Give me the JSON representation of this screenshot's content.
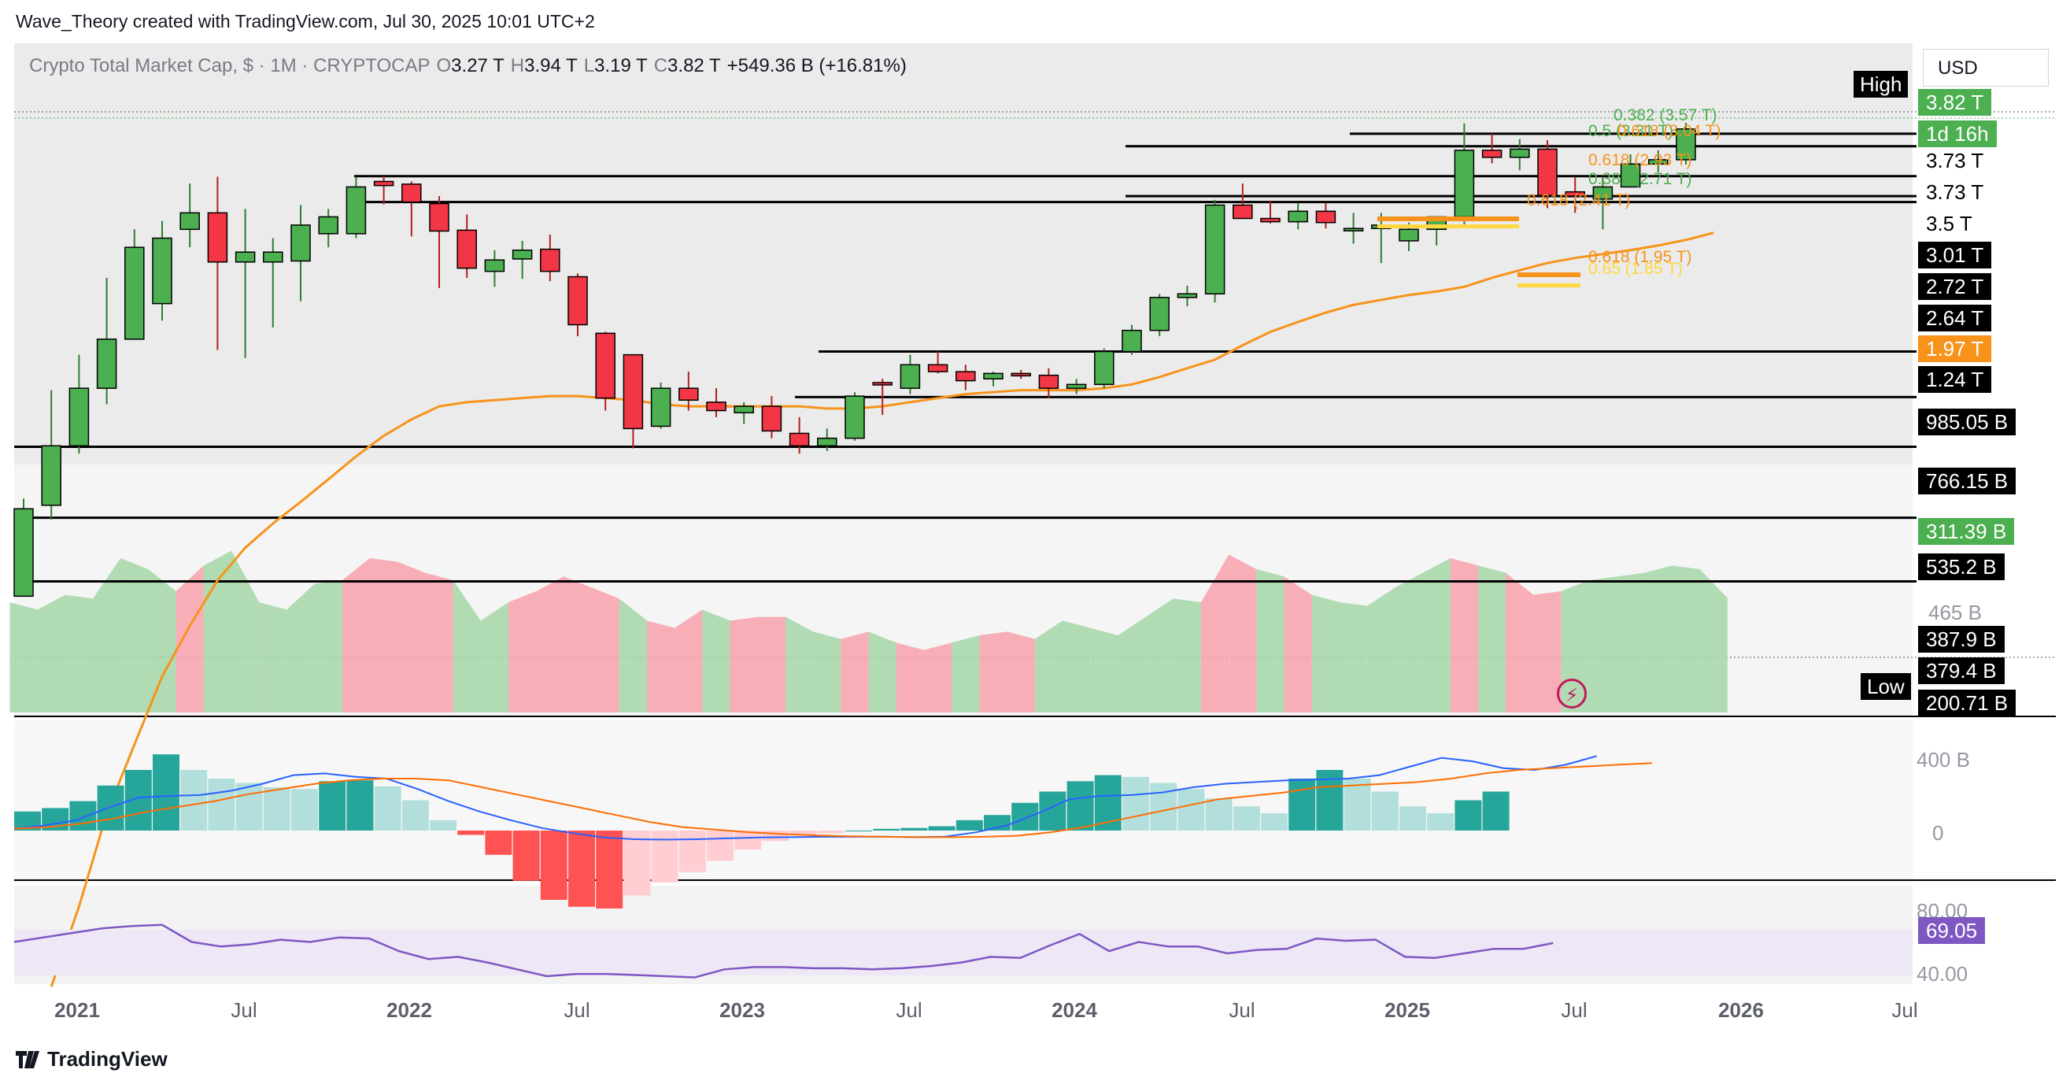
{
  "header": {
    "attribution": "Wave_Theory created with TradingView.com, Jul 30, 2025 10:01 UTC+2"
  },
  "legend": {
    "symbol": "Crypto Total Market Cap, $ · 1M · CRYPTOCAP",
    "o_label": "O",
    "o": "3.27 T",
    "h_label": "H",
    "h": "3.94 T",
    "l_label": "L",
    "l": "3.19 T",
    "c_label": "C",
    "c": "3.82 T",
    "change": "+549.36 B (+16.81%)"
  },
  "currency": "USD",
  "brand": "TradingView",
  "colors": {
    "up": "#4caf50",
    "down": "#f23645",
    "ema": "#f7931a",
    "macd": "#2962ff",
    "signal": "#ff6d00",
    "rsi": "#7e57c2"
  },
  "price_tags": [
    {
      "label": "3.82 T",
      "bg": "#4caf50",
      "fg": "#ffffff"
    },
    {
      "label": "1d 16h",
      "bg": "#4caf50",
      "fg": "#ffffff"
    },
    {
      "label": "3.73 T",
      "bg": "#ffffff",
      "fg": "#000000"
    },
    {
      "label": "3.73 T",
      "bg": "#ffffff",
      "fg": "#000000"
    },
    {
      "label": "3.5 T",
      "bg": "#ffffff",
      "fg": "#000000"
    },
    {
      "label": "3.01 T",
      "bg": "#000000",
      "fg": "#ffffff"
    },
    {
      "label": "2.72 T",
      "bg": "#000000",
      "fg": "#ffffff"
    },
    {
      "label": "2.64 T",
      "bg": "#000000",
      "fg": "#ffffff"
    },
    {
      "label": "1.97 T",
      "bg": "#f7931a",
      "fg": "#ffffff"
    },
    {
      "label": "1.24 T",
      "bg": "#000000",
      "fg": "#ffffff"
    },
    {
      "label": "985.05 B",
      "bg": "#000000",
      "fg": "#ffffff"
    },
    {
      "label": "766.15 B",
      "bg": "#000000",
      "fg": "#ffffff"
    },
    {
      "label": "311.39 B",
      "bg": "#4caf50",
      "fg": "#ffffff"
    },
    {
      "label": "535.2 B",
      "bg": "#000000",
      "fg": "#ffffff"
    },
    {
      "label": "387.9 B",
      "bg": "#000000",
      "fg": "#ffffff"
    },
    {
      "label": "379.4 B",
      "bg": "#000000",
      "fg": "#ffffff"
    },
    {
      "label": "200.71 B",
      "bg": "#000000",
      "fg": "#ffffff"
    }
  ],
  "scale_labels": {
    "vol_465": "465 B",
    "macd_400": "400 B",
    "macd_0": "0",
    "rsi_80": "80.00",
    "rsi_40": "40.00",
    "rsi_value": "69.05"
  },
  "flags": {
    "high": "High",
    "low": "Low"
  },
  "fib_labels": [
    {
      "text": "0.382 (3.57 T)",
      "color": "#4caf50"
    },
    {
      "text": "0.5 (3.31 T)",
      "color": "#4caf50"
    },
    {
      "text": "0.618 (3.04 T)",
      "color": "#f7931a"
    },
    {
      "text": "0.618 (2.93 T)",
      "color": "#f7931a"
    },
    {
      "text": "0.382 (2.71 T)",
      "color": "#4caf50"
    },
    {
      "text": "0.618 (2.41 T)",
      "color": "#f7931a"
    },
    {
      "text": "0.618 (1.95 T)",
      "color": "#f7931a"
    },
    {
      "text": "0.65 (1.85 T)",
      "color": "#ffd740"
    }
  ],
  "chart_data": {
    "type": "candlestick",
    "title": "Crypto Total Market Cap, $ · 1M · CRYPTOCAP",
    "x_axis_labels": [
      "2021",
      "Jul",
      "2022",
      "Jul",
      "2023",
      "Jul",
      "2024",
      "Jul",
      "2025",
      "Jul",
      "2026",
      "Jul"
    ],
    "y_scale": "log",
    "y_range_T": [
      0.2,
      4.2
    ],
    "candles_T": [
      {
        "m": "2020-12",
        "o": 0.36,
        "h": 0.59,
        "l": 0.36,
        "c": 0.56
      },
      {
        "m": "2021-01",
        "o": 0.57,
        "h": 1.02,
        "l": 0.53,
        "c": 0.77
      },
      {
        "m": "2021-02",
        "o": 0.77,
        "h": 1.22,
        "l": 0.74,
        "c": 1.03
      },
      {
        "m": "2021-03",
        "o": 1.03,
        "h": 1.8,
        "l": 0.95,
        "c": 1.32
      },
      {
        "m": "2021-04",
        "o": 1.32,
        "h": 2.3,
        "l": 1.43,
        "c": 2.1
      },
      {
        "m": "2021-05",
        "o": 1.58,
        "h": 2.4,
        "l": 1.45,
        "c": 2.2
      },
      {
        "m": "2021-06",
        "o": 2.3,
        "h": 2.9,
        "l": 2.1,
        "c": 2.5
      },
      {
        "m": "2021-07",
        "o": 2.5,
        "h": 3.0,
        "l": 1.25,
        "c": 1.95
      },
      {
        "m": "2021-08",
        "o": 1.95,
        "h": 2.55,
        "l": 1.2,
        "c": 2.05
      },
      {
        "m": "2021-09",
        "o": 1.95,
        "h": 2.2,
        "l": 1.4,
        "c": 2.05
      },
      {
        "m": "2021-10",
        "o": 1.96,
        "h": 2.6,
        "l": 1.6,
        "c": 2.35
      },
      {
        "m": "2021-11",
        "o": 2.25,
        "h": 2.55,
        "l": 2.1,
        "c": 2.45
      },
      {
        "m": "2021-12",
        "o": 2.25,
        "h": 3.0,
        "l": 2.2,
        "c": 2.85
      },
      {
        "m": "2022-01",
        "o": 2.93,
        "h": 3.01,
        "l": 2.61,
        "c": 2.87
      },
      {
        "m": "2022-02",
        "o": 2.89,
        "h": 2.93,
        "l": 2.22,
        "c": 2.64
      },
      {
        "m": "2022-03",
        "o": 2.62,
        "h": 2.72,
        "l": 1.71,
        "c": 2.28
      },
      {
        "m": "2022-04",
        "o": 2.29,
        "h": 2.48,
        "l": 1.8,
        "c": 1.89
      },
      {
        "m": "2022-05",
        "o": 1.86,
        "h": 2.07,
        "l": 1.72,
        "c": 1.97
      },
      {
        "m": "2022-06",
        "o": 1.98,
        "h": 2.17,
        "l": 1.79,
        "c": 2.07
      },
      {
        "m": "2022-07",
        "o": 2.08,
        "h": 2.24,
        "l": 1.77,
        "c": 1.86
      },
      {
        "m": "2022-08",
        "o": 1.81,
        "h": 1.84,
        "l": 1.34,
        "c": 1.42
      },
      {
        "m": "2022-09",
        "o": 1.36,
        "h": 1.37,
        "l": 0.92,
        "c": 0.98
      },
      {
        "m": "2022-10",
        "o": 1.22,
        "h": 1.22,
        "l": 0.76,
        "c": 0.84
      },
      {
        "m": "2022-11",
        "o": 0.85,
        "h": 1.06,
        "l": 0.84,
        "c": 1.03
      },
      {
        "m": "2022-12",
        "o": 1.03,
        "h": 1.12,
        "l": 0.92,
        "c": 0.97
      },
      {
        "m": "2023-01",
        "o": 0.96,
        "h": 1.03,
        "l": 0.89,
        "c": 0.92
      },
      {
        "m": "2023-02",
        "o": 0.91,
        "h": 0.96,
        "l": 0.86,
        "c": 0.94
      },
      {
        "m": "2023-03",
        "o": 0.94,
        "h": 0.99,
        "l": 0.8,
        "c": 0.83
      },
      {
        "m": "2023-04",
        "o": 0.82,
        "h": 0.89,
        "l": 0.74,
        "c": 0.77
      },
      {
        "m": "2023-05",
        "o": 0.77,
        "h": 0.84,
        "l": 0.75,
        "c": 0.8
      },
      {
        "m": "2023-06",
        "o": 0.8,
        "h": 1.01,
        "l": 0.79,
        "c": 0.99
      },
      {
        "m": "2023-07",
        "o": 1.06,
        "h": 1.08,
        "l": 0.9,
        "c": 1.05
      },
      {
        "m": "2023-08",
        "o": 1.03,
        "h": 1.22,
        "l": 1.0,
        "c": 1.16
      },
      {
        "m": "2023-09",
        "o": 1.16,
        "h": 1.24,
        "l": 1.11,
        "c": 1.12
      },
      {
        "m": "2023-10",
        "o": 1.12,
        "h": 1.16,
        "l": 1.02,
        "c": 1.07
      },
      {
        "m": "2023-11",
        "o": 1.08,
        "h": 1.12,
        "l": 1.04,
        "c": 1.11
      },
      {
        "m": "2023-12",
        "o": 1.11,
        "h": 1.13,
        "l": 1.08,
        "c": 1.1
      },
      {
        "m": "2024-01",
        "o": 1.1,
        "h": 1.14,
        "l": 0.98,
        "c": 1.03
      },
      {
        "m": "2024-02",
        "o": 1.03,
        "h": 1.08,
        "l": 1.0,
        "c": 1.05
      },
      {
        "m": "2024-03",
        "o": 1.05,
        "h": 1.26,
        "l": 1.03,
        "c": 1.24
      },
      {
        "m": "2024-04",
        "o": 1.24,
        "h": 1.42,
        "l": 1.22,
        "c": 1.38
      },
      {
        "m": "2024-05",
        "o": 1.38,
        "h": 1.66,
        "l": 1.34,
        "c": 1.63
      },
      {
        "m": "2024-06",
        "o": 1.63,
        "h": 1.73,
        "l": 1.56,
        "c": 1.66
      },
      {
        "m": "2024-07",
        "o": 1.66,
        "h": 2.67,
        "l": 1.59,
        "c": 2.6
      },
      {
        "m": "2024-08",
        "o": 2.6,
        "h": 2.9,
        "l": 2.43,
        "c": 2.43
      },
      {
        "m": "2024-09",
        "o": 2.43,
        "h": 2.66,
        "l": 2.37,
        "c": 2.39
      },
      {
        "m": "2024-10",
        "o": 2.39,
        "h": 2.63,
        "l": 2.3,
        "c": 2.52
      },
      {
        "m": "2024-11",
        "o": 2.52,
        "h": 2.63,
        "l": 2.31,
        "c": 2.38
      },
      {
        "m": "2024-12",
        "o": 2.31,
        "h": 2.5,
        "l": 2.14,
        "c": 2.31
      },
      {
        "m": "2025-01",
        "o": 2.31,
        "h": 2.5,
        "l": 1.94,
        "c": 2.35
      },
      {
        "m": "2025-02",
        "o": 2.17,
        "h": 2.38,
        "l": 2.06,
        "c": 2.3
      },
      {
        "m": "2025-03",
        "o": 2.3,
        "h": 2.42,
        "l": 2.12,
        "c": 2.45
      },
      {
        "m": "2025-04",
        "o": 2.45,
        "h": 3.93,
        "l": 2.33,
        "c": 3.43
      },
      {
        "m": "2025-05",
        "o": 3.43,
        "h": 3.73,
        "l": 3.21,
        "c": 3.31
      },
      {
        "m": "2025-06",
        "o": 3.31,
        "h": 3.63,
        "l": 3.1,
        "c": 3.45
      },
      {
        "m": "2025-07",
        "o": 3.45,
        "h": 3.61,
        "l": 2.56,
        "c": 2.73
      },
      {
        "m": "2025-08",
        "o": 2.78,
        "h": 2.99,
        "l": 2.5,
        "c": 2.72
      },
      {
        "m": "2025-09",
        "o": 2.68,
        "h": 3.0,
        "l": 2.3,
        "c": 2.85
      },
      {
        "m": "2025-10",
        "o": 2.85,
        "h": 3.36,
        "l": 2.85,
        "c": 3.2
      },
      {
        "m": "2025-11",
        "o": 3.2,
        "h": 3.43,
        "l": 3.07,
        "c": 3.27
      },
      {
        "m": "2025-12",
        "o": 3.27,
        "h": 3.94,
        "l": 3.19,
        "c": 3.82
      }
    ],
    "ema_T": [
      0.05,
      0.075,
      0.12,
      0.17,
      0.24,
      0.31,
      0.39,
      0.46,
      0.52,
      0.58,
      0.65,
      0.73,
      0.81,
      0.88,
      0.94,
      0.96,
      0.97,
      0.98,
      0.99,
      0.99,
      0.98,
      0.97,
      0.95,
      0.94,
      0.94,
      0.94,
      0.94,
      0.94,
      0.93,
      0.93,
      0.94,
      0.96,
      0.98,
      1.0,
      1.01,
      1.02,
      1.02,
      1.02,
      1.03,
      1.05,
      1.09,
      1.14,
      1.19,
      1.28,
      1.37,
      1.44,
      1.51,
      1.57,
      1.61,
      1.65,
      1.68,
      1.72,
      1.8,
      1.87,
      1.94,
      1.99,
      2.03,
      2.07,
      2.12,
      2.18,
      2.26
    ],
    "horizontal_levels_T": [
      3.73,
      3.5,
      3.01,
      2.72,
      2.64,
      1.24,
      0.98505,
      0.76615,
      0.5352,
      0.3879
    ],
    "volume_B": [
      300,
      280,
      320,
      310,
      420,
      390,
      330,
      400,
      440,
      300,
      280,
      350,
      360,
      420,
      410,
      380,
      360,
      250,
      300,
      330,
      370,
      340,
      310,
      250,
      230,
      280,
      250,
      260,
      260,
      220,
      200,
      220,
      190,
      170,
      190,
      210,
      220,
      200,
      250,
      230,
      210,
      260,
      310,
      300,
      430,
      390,
      370,
      320,
      300,
      290,
      340,
      380,
      420,
      400,
      380,
      320,
      330,
      360,
      370,
      380,
      400,
      390,
      311.39
    ],
    "macd": {
      "histogram_B": [
        22,
        26,
        34,
        52,
        70,
        88,
        70,
        60,
        55,
        50,
        48,
        57,
        58,
        51,
        35,
        12,
        -5,
        -28,
        -58,
        -80,
        -88,
        -90,
        -75,
        -60,
        -48,
        -35,
        -22,
        -12,
        -6,
        -3,
        0,
        2,
        3,
        5,
        12,
        18,
        32,
        45,
        57,
        64,
        62,
        55,
        48,
        37,
        28,
        20,
        60,
        70,
        60,
        45,
        28,
        20,
        35,
        45
      ],
      "macd_B": [
        10,
        30,
        60,
        130,
        190,
        200,
        205,
        230,
        270,
        320,
        330,
        310,
        300,
        240,
        170,
        110,
        60,
        15,
        -15,
        -40,
        -50,
        -52,
        -50,
        -45,
        -40,
        -38,
        -36,
        -36,
        -35,
        -38,
        -35,
        -10,
        30,
        100,
        180,
        200,
        205,
        220,
        250,
        270,
        280,
        290,
        295,
        300,
        320,
        370,
        420,
        400,
        360,
        350,
        380,
        430
      ],
      "signal_B": [
        10,
        20,
        40,
        70,
        110,
        140,
        170,
        210,
        240,
        270,
        290,
        300,
        300,
        290,
        250,
        210,
        170,
        130,
        90,
        50,
        20,
        5,
        -10,
        -20,
        -28,
        -33,
        -36,
        -38,
        -38,
        -36,
        -30,
        -10,
        20,
        60,
        100,
        140,
        180,
        200,
        220,
        250,
        260,
        270,
        280,
        300,
        330,
        350,
        360,
        370,
        380,
        390
      ]
    },
    "rsi": [
      70,
      74,
      78,
      82,
      84,
      85,
      70,
      66,
      68,
      72,
      70,
      74,
      73,
      62,
      55,
      57,
      52,
      46,
      40,
      42,
      42,
      41,
      40,
      39,
      46,
      48,
      48,
      47,
      47,
      46,
      47,
      49,
      52,
      57,
      56,
      67,
      77,
      62,
      70,
      66,
      66,
      60,
      63,
      64,
      73,
      71,
      72,
      57,
      56,
      60,
      64,
      64,
      69.05
    ],
    "rsi_levels": [
      80.0,
      40.0
    ]
  }
}
